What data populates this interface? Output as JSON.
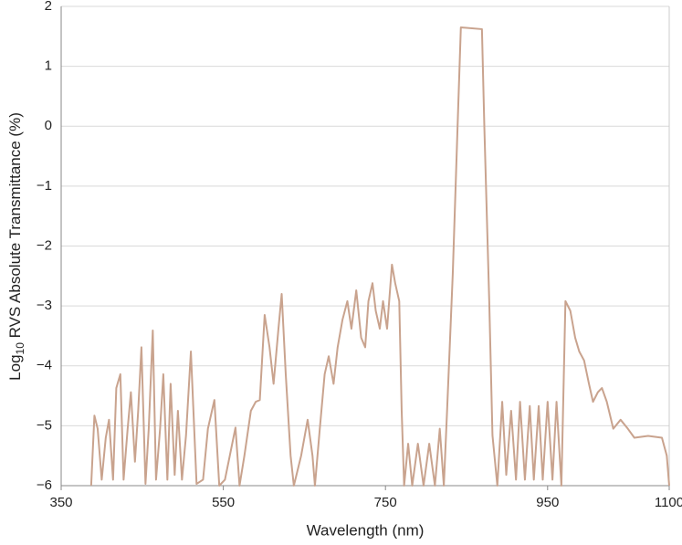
{
  "chart_data": {
    "type": "line",
    "x_label": "Wavelength (nm)",
    "y_label": {
      "prefix": "Log",
      "subscript": "10",
      "rest": " RVS Absolute Transmittance (%)"
    },
    "xlim": [
      350,
      1100
    ],
    "xticks": [
      350,
      550,
      750,
      950,
      1100
    ],
    "ylim": [
      -6,
      2
    ],
    "yticks": [
      {
        "value": -6,
        "label": "−6"
      },
      {
        "value": -5,
        "label": "−5"
      },
      {
        "value": -4,
        "label": "−4"
      },
      {
        "value": -3,
        "label": "−3"
      },
      {
        "value": -2,
        "label": "−2"
      },
      {
        "value": -1,
        "label": "−1"
      },
      0,
      1,
      2
    ],
    "grid": true,
    "x": [
      387,
      391,
      395,
      400,
      405,
      409,
      414,
      418,
      423,
      427,
      432,
      436,
      441,
      445,
      449,
      454,
      458,
      463,
      467,
      472,
      476,
      481,
      485,
      490,
      494,
      499,
      504,
      510,
      517,
      525,
      531,
      539,
      545,
      552,
      558,
      565,
      570,
      576,
      584,
      590,
      595,
      601,
      607,
      612,
      618,
      622,
      627,
      633,
      637,
      646,
      654,
      660,
      663,
      669,
      675,
      680,
      686,
      691,
      697,
      703,
      708,
      714,
      720,
      725,
      729,
      734,
      738,
      743,
      747,
      752,
      758,
      762,
      767,
      770,
      773,
      778,
      783,
      790,
      797,
      804,
      811,
      817,
      822,
      826,
      833,
      840,
      843,
      869,
      872,
      878,
      882,
      888,
      894,
      899,
      905,
      911,
      916,
      922,
      928,
      933,
      939,
      944,
      950,
      956,
      961,
      967,
      972,
      978,
      984,
      989,
      995,
      1001,
      1006,
      1012,
      1017,
      1023,
      1031,
      1040,
      1049,
      1057,
      1074,
      1091,
      1097,
      1100
    ],
    "series": [
      {
        "color": "#c9a38e",
        "values": [
          -6,
          -4.83,
          -5.05,
          -5.9,
          -5.2,
          -4.9,
          -5.9,
          -4.37,
          -4.14,
          -5.9,
          -5.05,
          -4.44,
          -5.6,
          -4.75,
          -3.69,
          -5.97,
          -5.05,
          -3.41,
          -5.9,
          -5.05,
          -4.14,
          -5.9,
          -4.3,
          -5.82,
          -4.75,
          -5.9,
          -5.16,
          -3.76,
          -5.97,
          -5.9,
          -5.05,
          -4.57,
          -6,
          -5.9,
          -5.5,
          -5.03,
          -6,
          -5.5,
          -4.75,
          -4.6,
          -4.57,
          -3.15,
          -3.69,
          -4.3,
          -3.38,
          -2.8,
          -4.14,
          -5.5,
          -6,
          -5.5,
          -4.9,
          -5.5,
          -6,
          -5.05,
          -4.14,
          -3.84,
          -4.3,
          -3.69,
          -3.23,
          -2.92,
          -3.38,
          -2.74,
          -3.53,
          -3.69,
          -2.92,
          -2.62,
          -3.08,
          -3.38,
          -2.92,
          -3.38,
          -2.31,
          -2.62,
          -2.92,
          -4.75,
          -6,
          -5.3,
          -6,
          -5.3,
          -6,
          -5.3,
          -6,
          -5.05,
          -6,
          -4.75,
          -2.47,
          0.43,
          1.65,
          1.62,
          -0.03,
          -2.92,
          -5.16,
          -6,
          -4.6,
          -5.82,
          -4.75,
          -5.9,
          -4.6,
          -5.9,
          -4.67,
          -5.9,
          -4.67,
          -5.9,
          -4.6,
          -5.9,
          -4.6,
          -6,
          -2.92,
          -3.08,
          -3.53,
          -3.76,
          -3.91,
          -4.3,
          -4.6,
          -4.44,
          -4.37,
          -4.6,
          -5.05,
          -4.9,
          -5.05,
          -5.2,
          -5.17,
          -5.2,
          -5.5,
          -6
        ]
      }
    ]
  }
}
